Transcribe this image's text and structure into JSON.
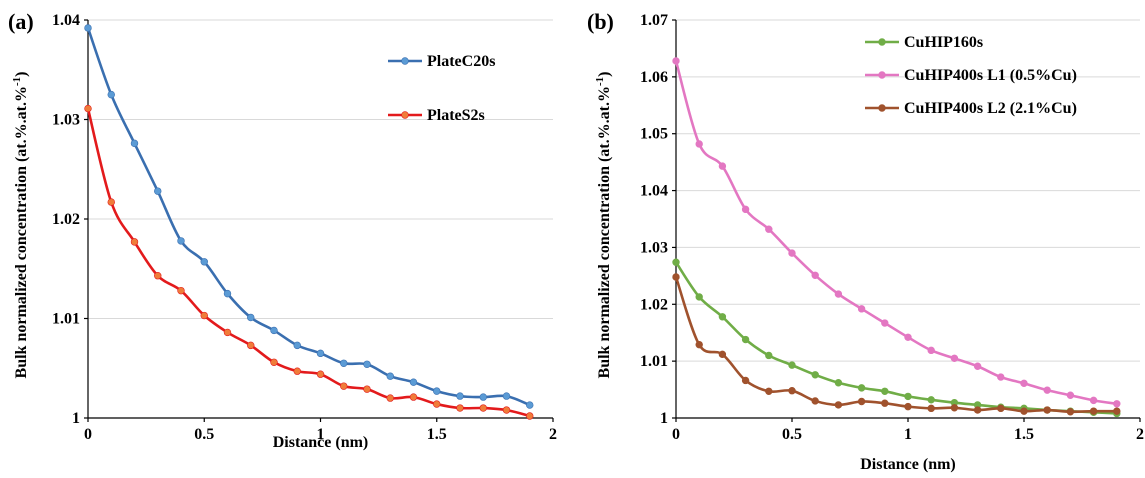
{
  "chart_data": [
    {
      "panel_label": "(a)",
      "type": "line",
      "xlabel": "Distance (nm)",
      "ylabel_main": "Bulk normalized concentration (at.%.at.%",
      "ylabel_sup": "-1",
      "ylabel_close": ")",
      "xlim": [
        0,
        2
      ],
      "ylim": [
        1.0,
        1.04
      ],
      "x_ticks": [
        0,
        0.5,
        1,
        1.5,
        2
      ],
      "x_tick_labels": [
        "0",
        "0.5",
        "1",
        "1.5",
        "2"
      ],
      "y_ticks": [
        1.0,
        1.01,
        1.02,
        1.03,
        1.04
      ],
      "y_tick_labels": [
        "1",
        "1.01",
        "1.02",
        "1.03",
        "1.04"
      ],
      "grid": "horizontal",
      "legend_position": "top-right",
      "x": [
        0,
        0.1,
        0.2,
        0.3,
        0.4,
        0.5,
        0.6,
        0.7,
        0.8,
        0.9,
        1.0,
        1.1,
        1.2,
        1.3,
        1.4,
        1.5,
        1.6,
        1.7,
        1.8,
        1.9
      ],
      "series": [
        {
          "name": "PlateC20s",
          "line_color": "#3a6fb0",
          "marker_color": "#5b9bd5",
          "values": [
            1.0392,
            1.0325,
            1.0276,
            1.0228,
            1.0178,
            1.0157,
            1.0125,
            1.0101,
            1.0088,
            1.0073,
            1.0065,
            1.0055,
            1.0054,
            1.0042,
            1.0036,
            1.0027,
            1.0022,
            1.0021,
            1.0022,
            1.0013
          ]
        },
        {
          "name": "PlateS2s",
          "line_color": "#e31a1c",
          "marker_color": "#f07c3a",
          "values": [
            1.0311,
            1.0217,
            1.0177,
            1.0143,
            1.0128,
            1.0103,
            1.0086,
            1.0073,
            1.0056,
            1.0047,
            1.0044,
            1.0032,
            1.0029,
            1.002,
            1.0021,
            1.0014,
            1.001,
            1.001,
            1.0008,
            1.0002
          ]
        }
      ]
    },
    {
      "panel_label": "(b)",
      "type": "line",
      "xlabel": "Distance (nm)",
      "ylabel_main": "Bulk normalized concentration (at.%.at.%",
      "ylabel_sup": "-1",
      "ylabel_close": ")",
      "xlim": [
        0,
        2
      ],
      "ylim": [
        1.0,
        1.07
      ],
      "x_ticks": [
        0,
        0.5,
        1,
        1.5,
        2
      ],
      "x_tick_labels": [
        "0",
        "0.5",
        "1",
        "1.5",
        "2"
      ],
      "y_ticks": [
        1.0,
        1.01,
        1.02,
        1.03,
        1.04,
        1.05,
        1.06,
        1.07
      ],
      "y_tick_labels": [
        "1",
        "1.01",
        "1.02",
        "1.03",
        "1.04",
        "1.05",
        "1.06",
        "1.07"
      ],
      "grid": "horizontal",
      "legend_position": "top-right",
      "x": [
        0,
        0.1,
        0.2,
        0.3,
        0.4,
        0.5,
        0.6,
        0.7,
        0.8,
        0.9,
        1.0,
        1.1,
        1.2,
        1.3,
        1.4,
        1.5,
        1.6,
        1.7,
        1.8,
        1.9
      ],
      "series": [
        {
          "name": "CuHIP160s",
          "line_color": "#70ad47",
          "marker_color": "#70ad47",
          "values": [
            1.0274,
            1.0213,
            1.0178,
            1.0138,
            1.011,
            1.0093,
            1.0076,
            1.0062,
            1.0053,
            1.0047,
            1.0038,
            1.0032,
            1.0027,
            1.0023,
            1.0019,
            1.0017,
            1.0014,
            1.0012,
            1.001,
            1.0008
          ]
        },
        {
          "name": "CuHIP400s L1 (0.5%Cu)",
          "line_color": "#e377c2",
          "marker_color": "#e377c2",
          "values": [
            1.0628,
            1.0482,
            1.0443,
            1.0367,
            1.0332,
            1.029,
            1.0251,
            1.0218,
            1.0192,
            1.0167,
            1.0142,
            1.0119,
            1.0105,
            1.0091,
            1.0072,
            1.0061,
            1.0049,
            1.004,
            1.0031,
            1.0025
          ]
        },
        {
          "name": "CuHIP400s L2 (2.1%Cu)",
          "line_color": "#a0522d",
          "marker_color": "#a0522d",
          "values": [
            1.0248,
            1.0129,
            1.0112,
            1.0066,
            1.0047,
            1.0048,
            1.003,
            1.0023,
            1.0029,
            1.0026,
            1.002,
            1.0017,
            1.0018,
            1.0014,
            1.0017,
            1.0012,
            1.0014,
            1.0011,
            1.0012,
            1.0012
          ]
        }
      ]
    }
  ]
}
